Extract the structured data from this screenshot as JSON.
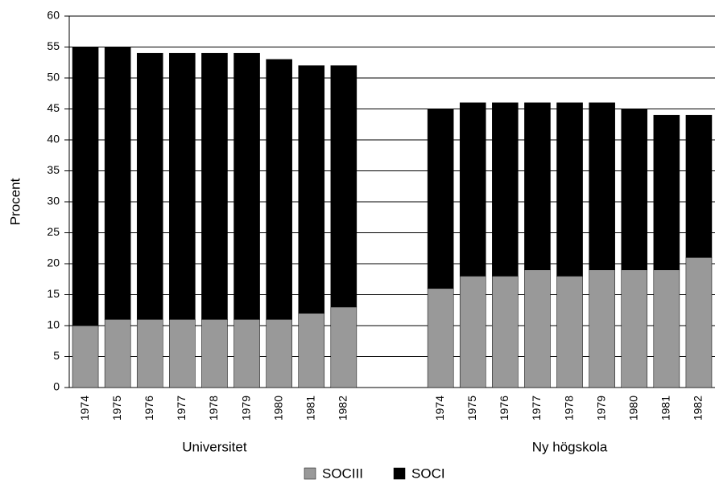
{
  "chart_data": {
    "type": "bar",
    "stacked": true,
    "ylabel": "Procent",
    "categories": [
      "1974",
      "1975",
      "1976",
      "1977",
      "1978",
      "1979",
      "1980",
      "1981",
      "1982",
      null,
      null,
      "1974",
      "1975",
      "1976",
      "1977",
      "1978",
      "1979",
      "1980",
      "1981",
      "1982"
    ],
    "group_labels": [
      "Universitet",
      "Ny högskola"
    ],
    "series": [
      {
        "name": "SOCIII",
        "color": "#999999",
        "values": [
          10,
          11,
          11,
          11,
          11,
          11,
          11,
          12,
          13,
          null,
          null,
          16,
          18,
          18,
          19,
          18,
          19,
          19,
          19,
          21
        ]
      },
      {
        "name": "SOCI",
        "color": "#000000",
        "values": [
          45,
          44,
          43,
          43,
          43,
          43,
          42,
          40,
          39,
          null,
          null,
          29,
          28,
          28,
          27,
          28,
          27,
          26,
          25,
          23
        ]
      }
    ],
    "ylim": [
      0,
      60
    ],
    "yticks": [
      0,
      5,
      10,
      15,
      20,
      25,
      30,
      35,
      40,
      45,
      50,
      55,
      60
    ],
    "grid": true,
    "legend": "bottom"
  }
}
